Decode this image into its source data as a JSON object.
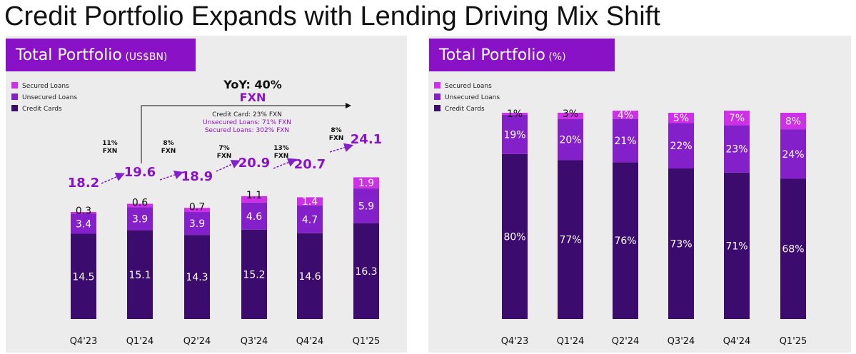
{
  "title": "Credit Portfolio Expands with Lending Driving Mix Shift",
  "colors": {
    "credit_cards": "#3b0b6e",
    "unsecured_loans": "#8420c9",
    "secured_loans": "#cd30e6",
    "header_bg": "#8a12c6",
    "panel_bg": "#ececec",
    "accent_text": "#8a12c6"
  },
  "chart_data": [
    {
      "type": "bar",
      "stacked": true,
      "title": "Total Portfolio",
      "title_unit": "(US$BN)",
      "categories": [
        "Q4'23",
        "Q1'24",
        "Q2'24",
        "Q3'24",
        "Q4'24",
        "Q1'25"
      ],
      "series": [
        {
          "name": "Credit Cards",
          "values": [
            14.5,
            15.1,
            14.3,
            15.2,
            14.6,
            16.3
          ],
          "labels": [
            "14.5",
            "15.1",
            "14.3",
            "15.2",
            "14.6",
            "16.3"
          ]
        },
        {
          "name": "Unsecured Loans",
          "values": [
            3.4,
            3.9,
            3.9,
            4.6,
            4.7,
            5.9
          ],
          "labels": [
            "3.4",
            "3.9",
            "3.9",
            "4.6",
            "4.7",
            "5.9"
          ]
        },
        {
          "name": "Secured Loans",
          "values": [
            0.3,
            0.6,
            0.7,
            1.1,
            1.4,
            1.9
          ],
          "labels": [
            "0.3",
            "0.6",
            "0.7",
            "1.1",
            "1.4",
            "1.9"
          ]
        }
      ],
      "totals": [
        "18.2",
        "19.6",
        "18.9",
        "20.9",
        "20.7",
        "24.1"
      ],
      "growth_labels": [
        {
          "line1": "11%",
          "line2": "FXN"
        },
        {
          "line1": "8%",
          "line2": "FXN"
        },
        {
          "line1": "7%",
          "line2": "FXN"
        },
        {
          "line1": "13%",
          "line2": "FXN"
        },
        {
          "line1": "8%",
          "line2": "FXN"
        }
      ],
      "yoy": {
        "line1": "YoY: 40%",
        "line2": "FXN",
        "details": [
          "Credit Card: 23% FXN",
          "Unsecured Loans: 71% FXN",
          "Secured Loans: 302% FXN"
        ]
      },
      "legend": [
        "Secured Loans",
        "Unsecured Loans",
        "Credit Cards"
      ],
      "legend_position": "top-left",
      "ylim": [
        0,
        26
      ]
    },
    {
      "type": "bar",
      "stacked": true,
      "title": "Total Portfolio",
      "title_unit": "(%)",
      "categories": [
        "Q4'23",
        "Q1'24",
        "Q2'24",
        "Q3'24",
        "Q4'24",
        "Q1'25"
      ],
      "series": [
        {
          "name": "Credit Cards",
          "values": [
            80,
            77,
            76,
            73,
            71,
            68
          ],
          "labels": [
            "80%",
            "77%",
            "76%",
            "73%",
            "71%",
            "68%"
          ]
        },
        {
          "name": "Unsecured Loans",
          "values": [
            19,
            20,
            21,
            22,
            23,
            24
          ],
          "labels": [
            "19%",
            "20%",
            "21%",
            "22%",
            "23%",
            "24%"
          ]
        },
        {
          "name": "Secured Loans",
          "values": [
            1,
            3,
            4,
            5,
            7,
            8
          ],
          "labels": [
            "1%",
            "3%",
            "4%",
            "5%",
            "7%",
            "8%"
          ]
        }
      ],
      "legend": [
        "Secured Loans",
        "Unsecured Loans",
        "Credit Cards"
      ],
      "legend_position": "top-left",
      "ylim": [
        0,
        100
      ]
    }
  ]
}
